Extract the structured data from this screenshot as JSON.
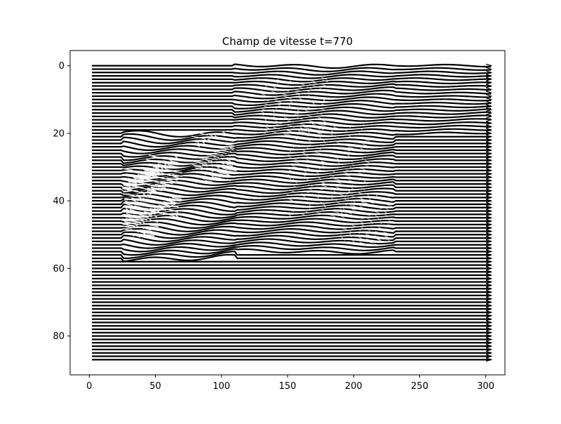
{
  "chart_data": {
    "type": "quiver",
    "title": "Champ de vitesse t=770",
    "xlabel": "",
    "ylabel": "",
    "xlim": [
      -14.5,
      314.5
    ],
    "ylim": [
      91.5,
      -4.5
    ],
    "y_axis_inverted": true,
    "grid": false,
    "legend": "none",
    "x_ticks": [
      0,
      50,
      100,
      150,
      200,
      250,
      300
    ],
    "y_ticks": [
      0,
      20,
      40,
      60,
      80
    ],
    "x_tick_labels": [
      "0",
      "50",
      "100",
      "150",
      "200",
      "250",
      "300"
    ],
    "y_tick_labels": [
      "0",
      "20",
      "40",
      "60",
      "80"
    ],
    "field": {
      "x_range": [
        2,
        304
      ],
      "y_range": [
        0,
        87
      ],
      "row_step": 1,
      "base_direction": "+x",
      "arrow_color": "#000000",
      "disturbed_regions": [
        {
          "x_range": [
            25,
            110
          ],
          "y_range": [
            20,
            57
          ],
          "strength": "high"
        },
        {
          "x_range": [
            110,
            230
          ],
          "y_range": [
            0,
            55
          ],
          "strength": "medium"
        },
        {
          "x_range": [
            230,
            304
          ],
          "y_range": [
            0,
            20
          ],
          "strength": "low"
        }
      ]
    },
    "colors": {
      "background": "#ffffff",
      "axes": "#000000",
      "arrows": "#000000"
    }
  }
}
